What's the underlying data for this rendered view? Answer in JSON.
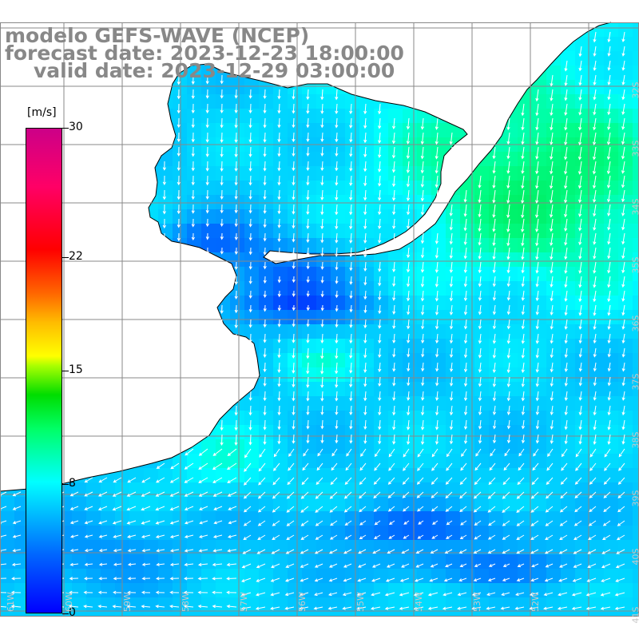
{
  "title": {
    "line1": "modelo GEFS-WAVE (NCEP)",
    "line2": "forecast date: 2023-12-23 18:00:00",
    "line3": "valid date: 2023-12-29 03:00:00"
  },
  "colorbar": {
    "unit": "[m/s]",
    "ticks": [
      "30",
      "22",
      "15",
      "8",
      "0"
    ],
    "tick_values": [
      30,
      22,
      15,
      8,
      0
    ],
    "vmin": 0,
    "vmax": 30
  },
  "lat_labels": [
    "32S",
    "33S",
    "34S",
    "35S",
    "36S",
    "37S",
    "38S",
    "39S",
    "40S",
    "41S"
  ],
  "lon_labels": [
    "61W",
    "60W",
    "59W",
    "58W",
    "57W",
    "56W",
    "55W",
    "54W",
    "53W",
    "52W"
  ],
  "colors": {
    "land": "#ffffff",
    "coast": "#000000",
    "grid": "#888888",
    "arrow": "#ffffff",
    "title": "#888888"
  },
  "chart_data": {
    "type": "heatmap",
    "variable": "wind speed",
    "unit": "[m/s]",
    "zlim": [
      0,
      30
    ],
    "lon_range": [
      -62,
      -51.5
    ],
    "lat_range": [
      -41.5,
      -31.5
    ]
  }
}
